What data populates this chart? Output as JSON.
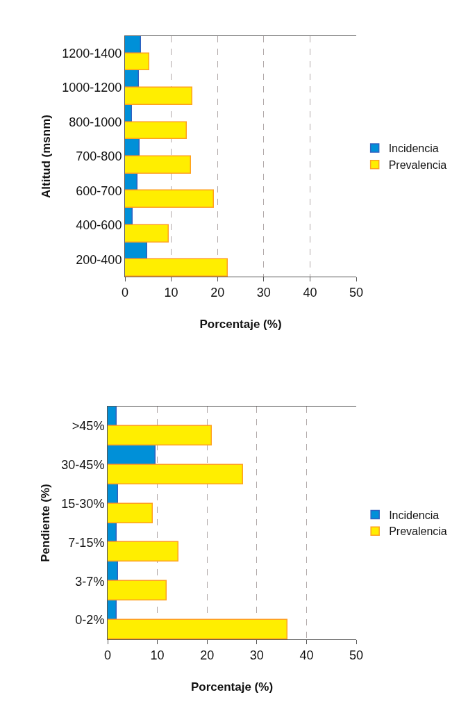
{
  "chart_data": [
    {
      "type": "bar",
      "orientation": "horizontal",
      "xlabel": "Porcentaje (%)",
      "ylabel": "Altitud (msnm)",
      "categories": [
        "1200-1400",
        "1000-1200",
        "800-1000",
        "700-800",
        "600-700",
        "400-600",
        "200-400"
      ],
      "series": [
        {
          "name": "Incidencia",
          "color": "#0090d8",
          "values": [
            3.4,
            3.0,
            1.5,
            3.2,
            2.7,
            1.7,
            4.8
          ]
        },
        {
          "name": "Prevalencia",
          "color": "#ffee00",
          "values": [
            5.2,
            14.5,
            13.4,
            14.2,
            19.2,
            9.4,
            22.2
          ]
        }
      ],
      "xlim": [
        0,
        50
      ],
      "xticks": [
        0,
        10,
        20,
        30,
        40,
        50
      ],
      "grid": "x",
      "legend": "right"
    },
    {
      "type": "bar",
      "orientation": "horizontal",
      "xlabel": "Porcentaje (%)",
      "ylabel": "Pendiente (%)",
      "categories": [
        ">45%",
        "30-45%",
        "15-30%",
        "7-15%",
        "3-7%",
        "0-2%"
      ],
      "series": [
        {
          "name": "Incidencia",
          "color": "#0090d8",
          "values": [
            1.8,
            9.6,
            2.1,
            1.8,
            2.1,
            1.8
          ]
        },
        {
          "name": "Prevalencia",
          "color": "#ffee00",
          "values": [
            20.9,
            27.2,
            9.1,
            14.3,
            11.9,
            36.2
          ]
        }
      ],
      "xlim": [
        0,
        50
      ],
      "xticks": [
        0,
        10,
        20,
        30,
        40,
        50
      ],
      "grid": "x",
      "legend": "right"
    }
  ]
}
